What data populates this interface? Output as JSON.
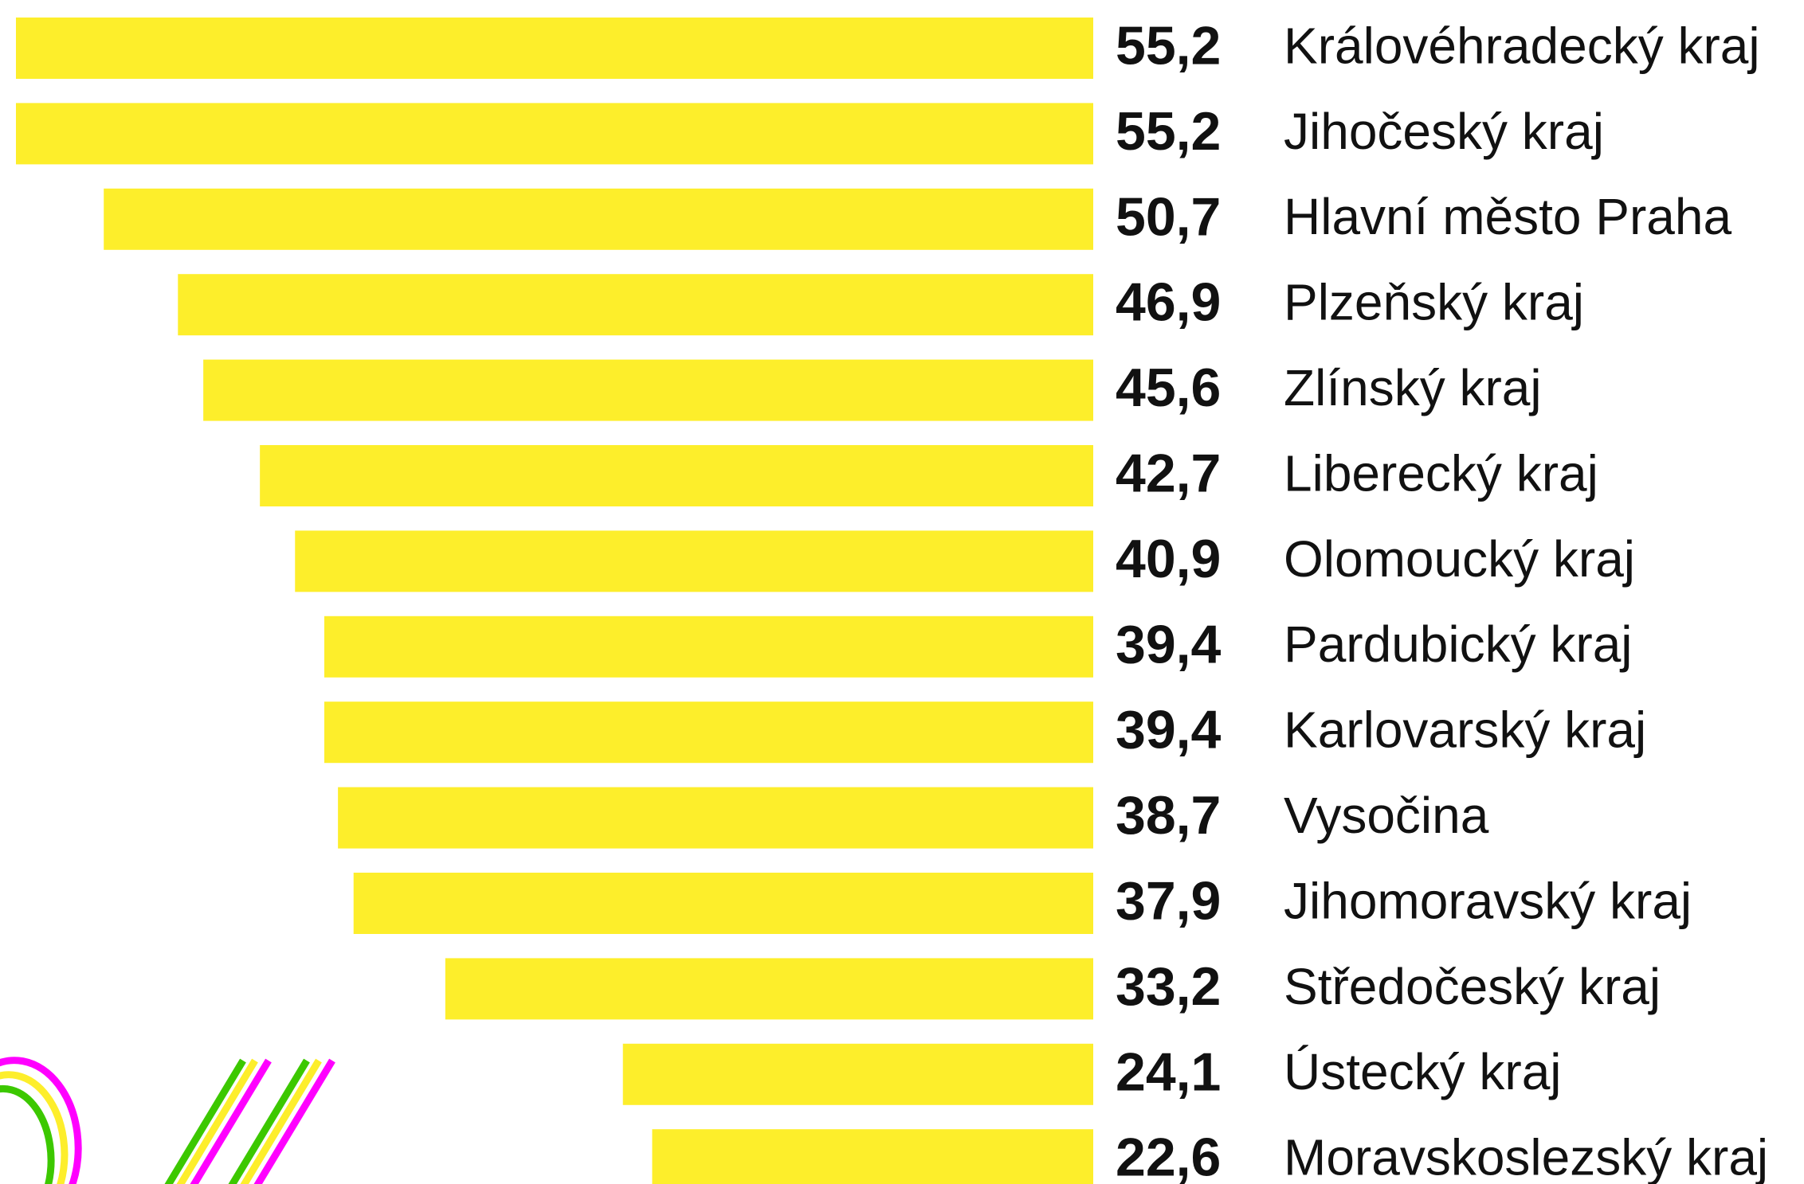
{
  "chart_data": {
    "type": "bar",
    "orientation": "horizontal",
    "color": "#fdee2b",
    "categories": [
      "Královéhradecký kraj",
      "Jihočeský kraj",
      "Hlavní město Praha",
      "Plzeňský kraj",
      "Zlínský kraj",
      "Liberecký kraj",
      "Olomoucký kraj",
      "Pardubický kraj",
      "Karlovarský kraj",
      "Vysočina",
      "Jihomoravský kraj",
      "Středočeský kraj",
      "Ústecký kraj",
      "Moravskoslezský kraj"
    ],
    "values": [
      55.2,
      55.2,
      50.7,
      46.9,
      45.6,
      42.7,
      40.9,
      39.4,
      39.4,
      38.7,
      37.9,
      33.2,
      24.1,
      22.6
    ],
    "value_labels": [
      "55,2",
      "55,2",
      "50,7",
      "46,9",
      "45,6",
      "42,7",
      "40,9",
      "39,4",
      "39,4",
      "38,7",
      "37,9",
      "33,2",
      "24,1",
      "22,6"
    ]
  }
}
